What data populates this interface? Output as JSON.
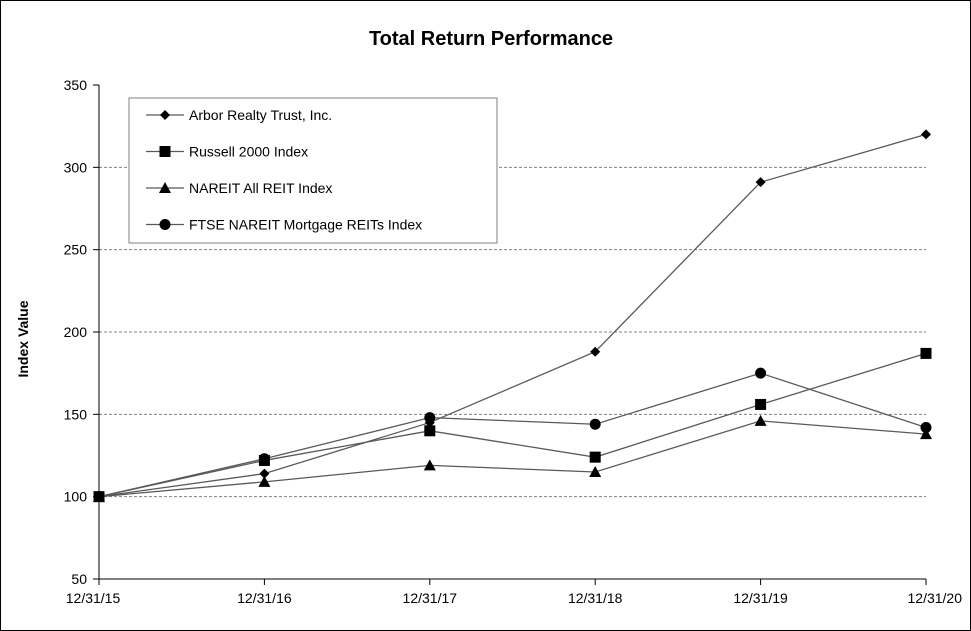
{
  "chart_data": {
    "type": "line",
    "title": "Total Return Performance",
    "xlabel": "",
    "ylabel": "Index Value",
    "categories": [
      "12/31/15",
      "12/31/16",
      "12/31/17",
      "12/31/18",
      "12/31/19",
      "12/31/20"
    ],
    "ylim": [
      50,
      350
    ],
    "yticks": [
      50,
      100,
      150,
      200,
      250,
      300,
      350
    ],
    "grid": "horizontal dashed",
    "legend_position": "top-left",
    "series": [
      {
        "name": "Arbor Realty Trust, Inc.",
        "marker": "diamond",
        "values": [
          100,
          114,
          145,
          188,
          291,
          320
        ]
      },
      {
        "name": "Russell 2000 Index",
        "marker": "square",
        "values": [
          100,
          122,
          140,
          124,
          156,
          187
        ]
      },
      {
        "name": "NAREIT All REIT Index",
        "marker": "triangle",
        "values": [
          100,
          109,
          119,
          115,
          146,
          138
        ]
      },
      {
        "name": "FTSE NAREIT Mortgage REITs Index",
        "marker": "circle",
        "values": [
          100,
          123,
          148,
          144,
          175,
          142
        ]
      }
    ],
    "colors": {
      "line": "#595959",
      "marker": "#000000",
      "grid": "#808080"
    }
  }
}
